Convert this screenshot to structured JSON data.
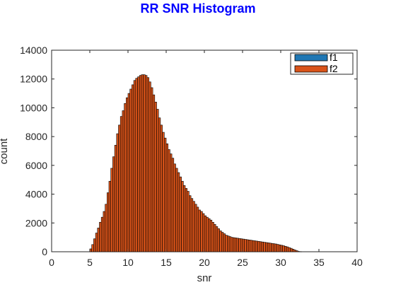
{
  "colors": {
    "title": "#0000ff",
    "f1": "#1f77b4",
    "f2": "#d95319",
    "bar_edge": "#000000",
    "axis": "#262626"
  },
  "chart_data": {
    "type": "bar",
    "title": "RR SNR Histogram",
    "xlabel": "snr",
    "ylabel": "count",
    "xlim": [
      0,
      40
    ],
    "ylim": [
      0,
      14000
    ],
    "xticks": [
      0,
      5,
      10,
      15,
      20,
      25,
      30,
      35,
      40
    ],
    "yticks": [
      0,
      2000,
      4000,
      6000,
      8000,
      10000,
      12000,
      14000
    ],
    "grid": false,
    "legend_position": "top-right",
    "bin_width": 0.25,
    "bin_start": 5.0,
    "series": [
      {
        "name": "f1",
        "values": []
      },
      {
        "name": "f2",
        "values": [
          200,
          500,
          900,
          1300,
          1650,
          2050,
          2400,
          2800,
          3300,
          4100,
          4900,
          5800,
          6600,
          7400,
          8200,
          8800,
          9400,
          9800,
          10300,
          10700,
          11000,
          11300,
          11600,
          11900,
          12050,
          12150,
          12250,
          12300,
          12300,
          12250,
          12100,
          11800,
          11400,
          10900,
          10400,
          9900,
          9300,
          8800,
          8300,
          7900,
          7500,
          7100,
          6800,
          6500,
          6100,
          5800,
          5500,
          5200,
          4900,
          4600,
          4400,
          4200,
          3900,
          3700,
          3500,
          3300,
          3100,
          2900,
          2800,
          2650,
          2500,
          2400,
          2300,
          2200,
          2050,
          1900,
          1750,
          1600,
          1450,
          1350,
          1250,
          1150,
          1100,
          1050,
          1000,
          980,
          960,
          940,
          920,
          900,
          880,
          860,
          840,
          820,
          800,
          780,
          760,
          740,
          720,
          700,
          680,
          660,
          640,
          620,
          600,
          580,
          560,
          540,
          510,
          480,
          450,
          420,
          380,
          340,
          290,
          240,
          180,
          120,
          70,
          20,
          5
        ]
      }
    ]
  }
}
